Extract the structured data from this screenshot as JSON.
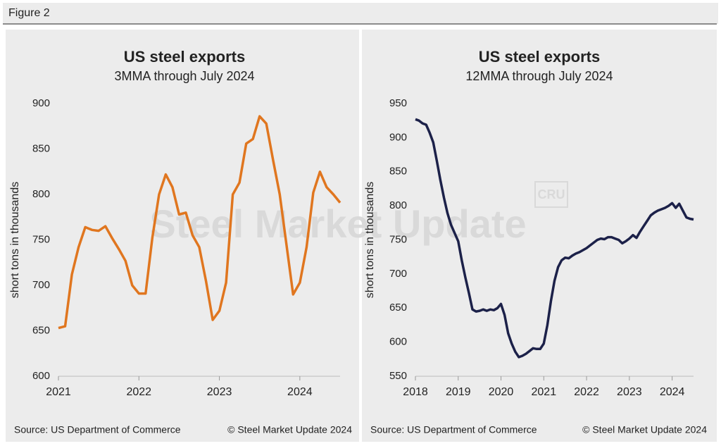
{
  "figure": "Figure 2",
  "watermark": {
    "text": "Steel Market Update",
    "logo": "CRU"
  },
  "chart_data": [
    {
      "type": "line",
      "title": "US steel exports",
      "subtitle": "3MMA through July 2024",
      "y_label": "short tons in thousands",
      "source": "Source: US Department of Commerce",
      "copyright": "© Steel Market Update 2024",
      "xlim": [
        2021,
        2024.5
      ],
      "xticks": [
        2021,
        2022,
        2023,
        2024
      ],
      "ylim": [
        600,
        900
      ],
      "yticks": [
        600,
        650,
        700,
        750,
        800,
        850,
        900
      ],
      "x": [
        2021,
        2021.0833,
        2021.1667,
        2021.25,
        2021.3333,
        2021.4167,
        2021.5,
        2021.5833,
        2021.6667,
        2021.75,
        2021.8333,
        2021.9167,
        2022,
        2022.0833,
        2022.1667,
        2022.25,
        2022.3333,
        2022.4167,
        2022.5,
        2022.5833,
        2022.6667,
        2022.75,
        2022.8333,
        2022.9167,
        2023,
        2023.0833,
        2023.1667,
        2023.25,
        2023.3333,
        2023.4167,
        2023.5,
        2023.5833,
        2023.6667,
        2023.75,
        2023.8333,
        2023.9167,
        2024,
        2024.0833,
        2024.1667,
        2024.25,
        2024.3333,
        2024.4167,
        2024.5
      ],
      "series": [
        {
          "color": "#e0761f",
          "values": [
            653,
            655,
            712,
            742,
            764,
            761,
            760,
            765,
            752,
            740,
            727,
            700,
            691,
            691,
            752,
            800,
            822,
            808,
            778,
            780,
            755,
            742,
            705,
            662,
            672,
            703,
            800,
            813,
            856,
            861,
            886,
            878,
            838,
            800,
            745,
            690,
            703,
            742,
            802,
            825,
            808,
            800,
            791
          ]
        }
      ]
    },
    {
      "type": "line",
      "title": "US steel exports",
      "subtitle": "12MMA through July 2024",
      "y_label": "short tons in thousands",
      "source": "Source: US Department of Commerce",
      "copyright": "© Steel Market Update 2024",
      "xlim": [
        2018,
        2024.5
      ],
      "xticks": [
        2018,
        2019,
        2020,
        2021,
        2022,
        2023,
        2024
      ],
      "ylim": [
        550,
        950
      ],
      "yticks": [
        550,
        600,
        650,
        700,
        750,
        800,
        850,
        900,
        950
      ],
      "x": [
        2018,
        2018.0833,
        2018.1667,
        2018.25,
        2018.3333,
        2018.4167,
        2018.5,
        2018.5833,
        2018.6667,
        2018.75,
        2018.8333,
        2018.9167,
        2019,
        2019.0833,
        2019.1667,
        2019.25,
        2019.3333,
        2019.4167,
        2019.5,
        2019.5833,
        2019.6667,
        2019.75,
        2019.8333,
        2019.9167,
        2020,
        2020.0833,
        2020.1667,
        2020.25,
        2020.3333,
        2020.4167,
        2020.5,
        2020.5833,
        2020.6667,
        2020.75,
        2020.8333,
        2020.9167,
        2021,
        2021.0833,
        2021.1667,
        2021.25,
        2021.3333,
        2021.4167,
        2021.5,
        2021.5833,
        2021.6667,
        2021.75,
        2021.8333,
        2021.9167,
        2022,
        2022.0833,
        2022.1667,
        2022.25,
        2022.3333,
        2022.4167,
        2022.5,
        2022.5833,
        2022.6667,
        2022.75,
        2022.8333,
        2022.9167,
        2023,
        2023.0833,
        2023.1667,
        2023.25,
        2023.3333,
        2023.4167,
        2023.5,
        2023.5833,
        2023.6667,
        2023.75,
        2023.8333,
        2023.9167,
        2024,
        2024.0833,
        2024.1667,
        2024.25,
        2024.3333,
        2024.4167,
        2024.5
      ],
      "series": [
        {
          "color": "#1c2149",
          "values": [
            927,
            925,
            921,
            919,
            907,
            893,
            866,
            838,
            812,
            789,
            772,
            760,
            748,
            720,
            695,
            672,
            648,
            645,
            646,
            648,
            646,
            648,
            647,
            650,
            656,
            640,
            613,
            598,
            586,
            578,
            580,
            583,
            587,
            591,
            590,
            590,
            598,
            625,
            660,
            690,
            710,
            720,
            724,
            723,
            727,
            730,
            732,
            735,
            738,
            742,
            746,
            750,
            752,
            751,
            754,
            754,
            752,
            750,
            745,
            748,
            752,
            757,
            753,
            762,
            770,
            778,
            786,
            790,
            793,
            795,
            797,
            800,
            804,
            797,
            803,
            793,
            783,
            781,
            780
          ]
        }
      ]
    }
  ]
}
